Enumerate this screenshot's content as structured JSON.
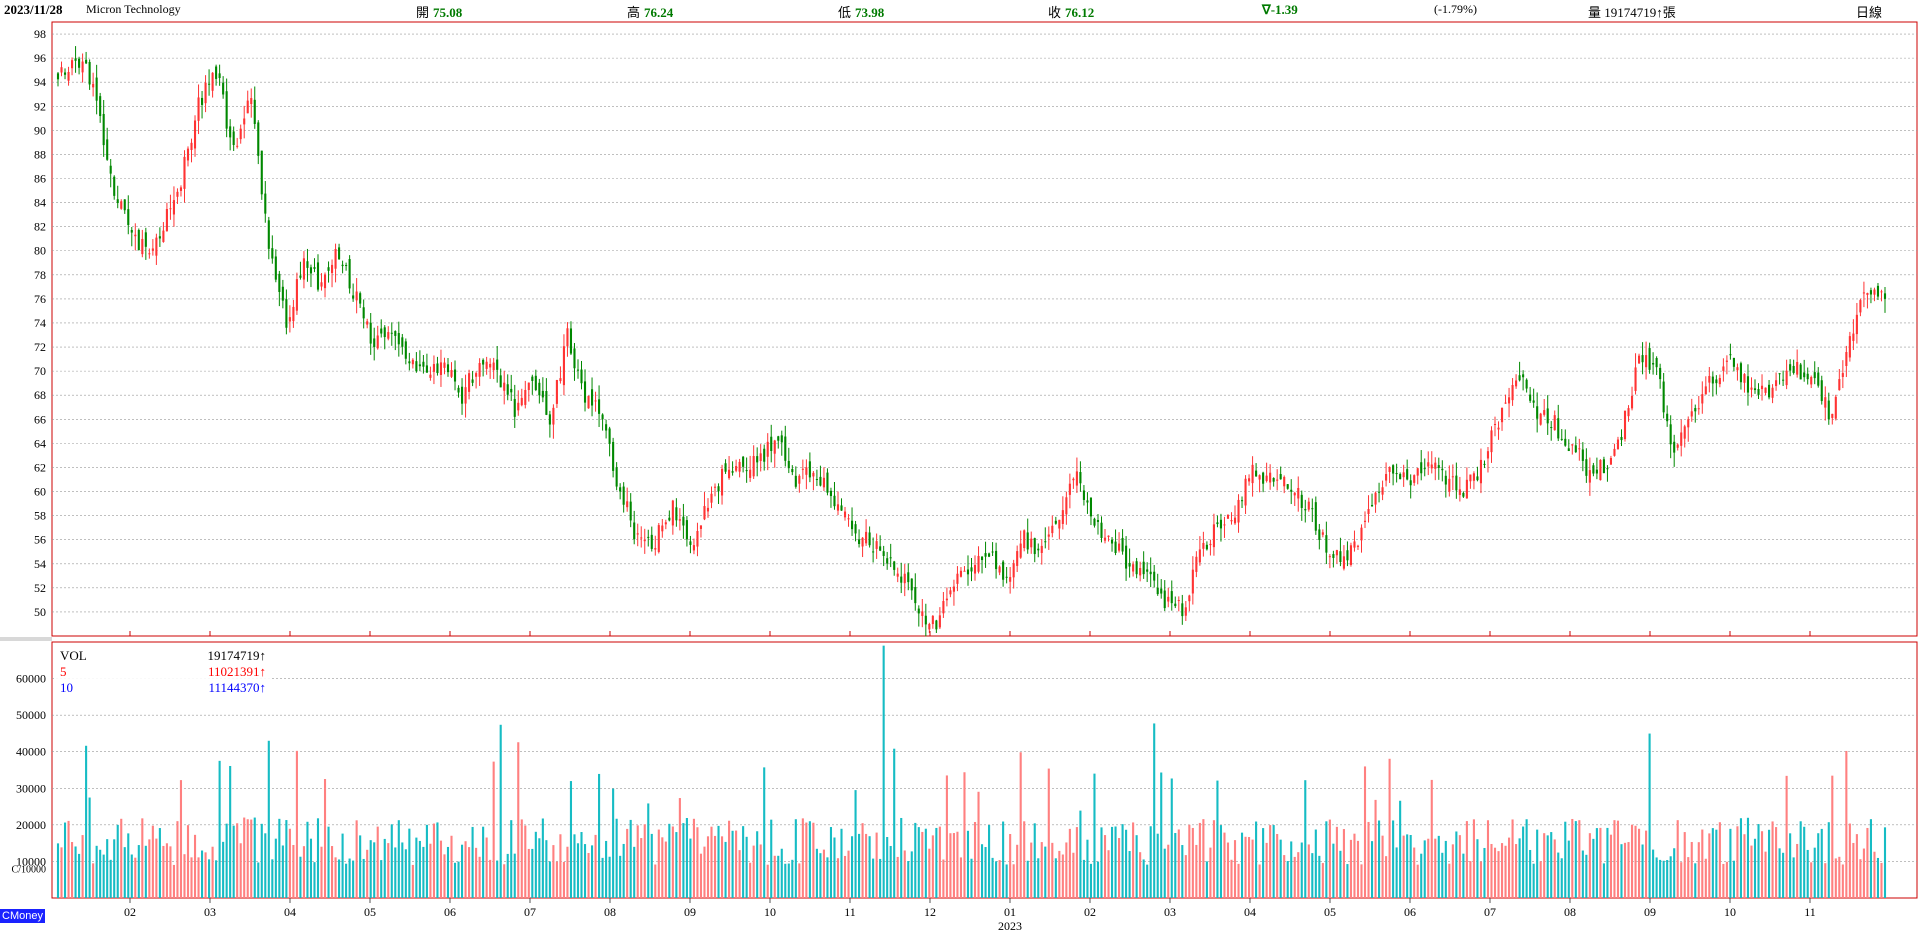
{
  "header": {
    "date": "2023/11/28",
    "name": "Micron Technology",
    "open_label": "開",
    "open": "75.08",
    "high_label": "高",
    "high": "76.24",
    "low_label": "低",
    "low": "73.98",
    "close_label": "收",
    "close": "76.12",
    "change": "∇-1.39",
    "change_pct": "(-1.79%)",
    "volume_label": "量",
    "volume": "19174719↑張",
    "period": "日線"
  },
  "colors": {
    "up": "#ff3333",
    "down": "#008800",
    "vol_up": "#ff8080",
    "vol_down": "#16bcc4",
    "frame": "#cc0000",
    "grid": "#999999"
  },
  "brand": "CMoney",
  "year_label": "2023",
  "chart_data": [
    {
      "type": "candlestick",
      "title": "Micron Technology",
      "ylim": [
        48,
        99
      ],
      "yticks": [
        50,
        52,
        54,
        56,
        58,
        60,
        62,
        64,
        66,
        68,
        70,
        72,
        74,
        76,
        78,
        80,
        82,
        84,
        86,
        88,
        90,
        92,
        94,
        96,
        98
      ],
      "grid": true,
      "month_labels": [
        "02",
        "03",
        "04",
        "05",
        "06",
        "07",
        "08",
        "09",
        "10",
        "11",
        "12",
        "01",
        "02",
        "03",
        "04",
        "05",
        "06",
        "07",
        "08",
        "09",
        "10",
        "11"
      ],
      "x_weeks_approx": 98,
      "close_path": [
        [
          0,
          95
        ],
        [
          1,
          96
        ],
        [
          2,
          94
        ],
        [
          3,
          86
        ],
        [
          4,
          82
        ],
        [
          5,
          80
        ],
        [
          6,
          82
        ],
        [
          7,
          86
        ],
        [
          8,
          92
        ],
        [
          9,
          95
        ],
        [
          10,
          88
        ],
        [
          11,
          93
        ],
        [
          12,
          80
        ],
        [
          13,
          74
        ],
        [
          14,
          79
        ],
        [
          15,
          77
        ],
        [
          16,
          80
        ],
        [
          17,
          76
        ],
        [
          18,
          72
        ],
        [
          19,
          73
        ],
        [
          20,
          71
        ],
        [
          21,
          70
        ],
        [
          22,
          71
        ],
        [
          23,
          68
        ],
        [
          24,
          71
        ],
        [
          25,
          70
        ],
        [
          26,
          67
        ],
        [
          27,
          69
        ],
        [
          28,
          66
        ],
        [
          29,
          73
        ],
        [
          30,
          68
        ],
        [
          31,
          66
        ],
        [
          32,
          60
        ],
        [
          33,
          56
        ],
        [
          34,
          56
        ],
        [
          35,
          59
        ],
        [
          36,
          55
        ],
        [
          37,
          59
        ],
        [
          38,
          62
        ],
        [
          39,
          62
        ],
        [
          40,
          63
        ],
        [
          41,
          64
        ],
        [
          42,
          61
        ],
        [
          43,
          62
        ],
        [
          44,
          60
        ],
        [
          45,
          57
        ],
        [
          46,
          56
        ],
        [
          47,
          55
        ],
        [
          48,
          53
        ],
        [
          49,
          50
        ],
        [
          50,
          49
        ],
        [
          51,
          52
        ],
        [
          52,
          54
        ],
        [
          53,
          55
        ],
        [
          54,
          53
        ],
        [
          55,
          56
        ],
        [
          56,
          55
        ],
        [
          57,
          58
        ],
        [
          58,
          62
        ],
        [
          59,
          57
        ],
        [
          60,
          56
        ],
        [
          61,
          54
        ],
        [
          62,
          53
        ],
        [
          63,
          51
        ],
        [
          64,
          50
        ],
        [
          65,
          55
        ],
        [
          66,
          57
        ],
        [
          67,
          58
        ],
        [
          68,
          62
        ],
        [
          69,
          61
        ],
        [
          70,
          61
        ],
        [
          71,
          59
        ],
        [
          72,
          56
        ],
        [
          73,
          54
        ],
        [
          74,
          56
        ],
        [
          75,
          60
        ],
        [
          76,
          62
        ],
        [
          77,
          60
        ],
        [
          78,
          63
        ],
        [
          79,
          61
        ],
        [
          80,
          60
        ],
        [
          81,
          62
        ],
        [
          82,
          66
        ],
        [
          83,
          70
        ],
        [
          84,
          67
        ],
        [
          85,
          66
        ],
        [
          86,
          64
        ],
        [
          87,
          62
        ],
        [
          88,
          62
        ],
        [
          89,
          65
        ],
        [
          90,
          71
        ],
        [
          91,
          70
        ],
        [
          92,
          63
        ],
        [
          93,
          66
        ],
        [
          94,
          69
        ],
        [
          95,
          71
        ],
        [
          96,
          69
        ],
        [
          97,
          68
        ],
        [
          98,
          69
        ],
        [
          99,
          70
        ],
        [
          100,
          69
        ],
        [
          101,
          66
        ],
        [
          102,
          73
        ],
        [
          103,
          77
        ],
        [
          104,
          76
        ]
      ]
    },
    {
      "type": "bar",
      "title": "VOL",
      "ylim": [
        0,
        70000
      ],
      "yticks": [
        10000,
        20000,
        30000,
        40000,
        50000,
        60000
      ],
      "legend": [
        {
          "name": "VOL",
          "value": "19174719↑",
          "color": "#000000"
        },
        {
          "name": "5",
          "value": "11021391↑",
          "color": "#ff0000"
        },
        {
          "name": "10",
          "value": "11144370↑",
          "color": "#0000ff"
        }
      ],
      "extra_label": "C/10000"
    }
  ]
}
